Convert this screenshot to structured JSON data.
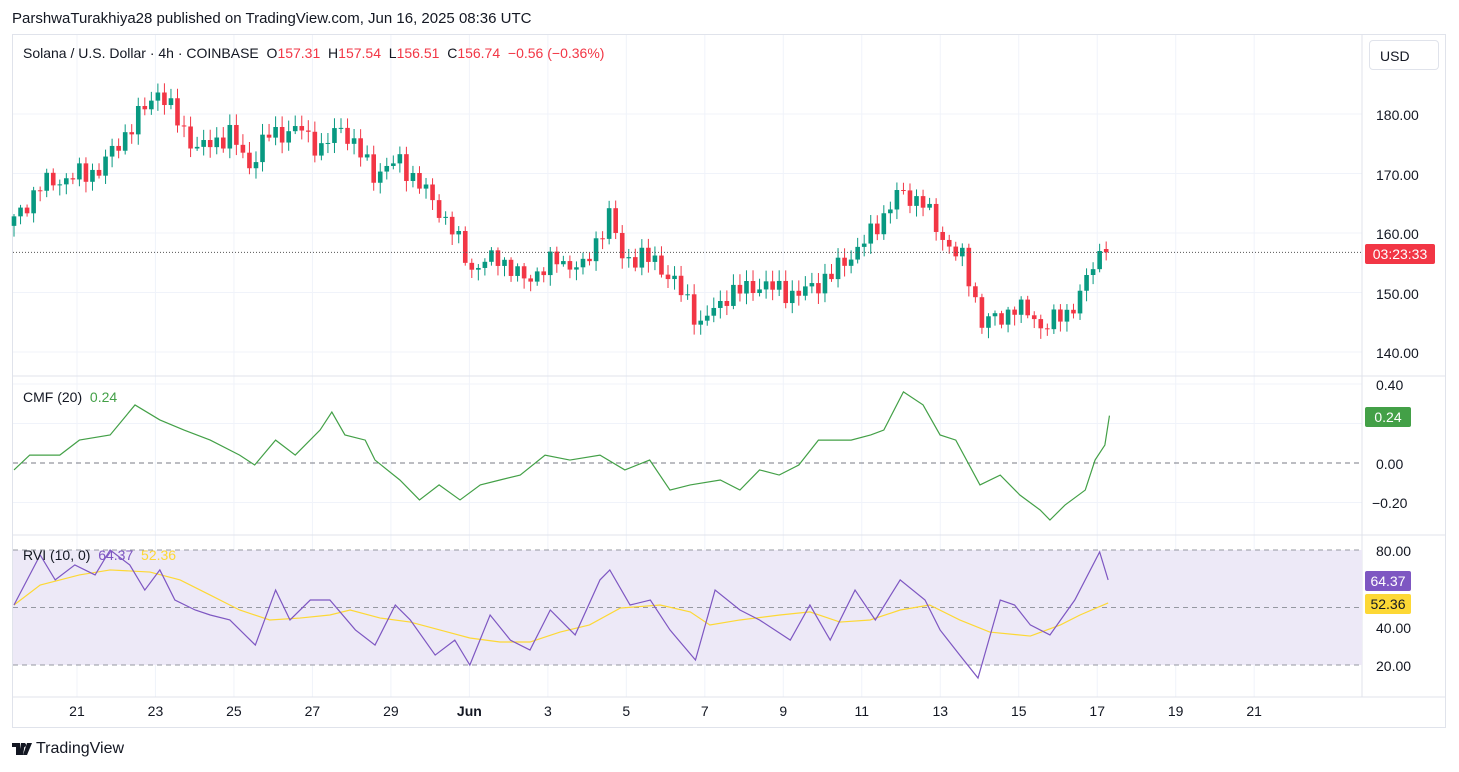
{
  "published": "ParshwaTurakhiya28 published on TradingView.com, Jun 16, 2025 08:36 UTC",
  "symbol": "Solana / U.S. Dollar · 4h · COINBASE",
  "ohlc": {
    "o_label": "O",
    "o": "157.31",
    "h_label": "H",
    "h": "157.54",
    "l_label": "L",
    "l": "156.51",
    "c_label": "C",
    "c": "156.74",
    "change": "−0.56 (−0.36%)"
  },
  "currency_button": "USD",
  "countdown": "03:23:33",
  "cmf": {
    "label": "CMF (20)",
    "value": "0.24"
  },
  "rvi": {
    "label": "RVI (10, 0)",
    "value": "64.37",
    "signal": "52.36"
  },
  "brand": "TradingView",
  "colors": {
    "up": "#089981",
    "down": "#f23645",
    "cmf": "#43a047",
    "rvi": "#7e57c2",
    "signal": "#fdd835",
    "rvi_band": "#ede9f7"
  },
  "chart_data": [
    {
      "type": "candlestick",
      "title": "Solana / U.S. Dollar · 4h · COINBASE",
      "ylim": [
        138,
        186
      ],
      "y_ticks": [
        "140.00",
        "150.00",
        "160.00",
        "170.00",
        "180.00"
      ],
      "x_ticks": [
        "21",
        "23",
        "25",
        "27",
        "29",
        "Jun",
        "3",
        "5",
        "7",
        "9",
        "11",
        "13",
        "15",
        "17",
        "19",
        "21"
      ],
      "last_price": 156.74,
      "close_anchors": [
        [
          0,
          162
        ],
        [
          4,
          168
        ],
        [
          13,
          170.6
        ],
        [
          18,
          178
        ],
        [
          22,
          184
        ],
        [
          25,
          179
        ],
        [
          28,
          174
        ],
        [
          33,
          176.6
        ],
        [
          36,
          171.4
        ],
        [
          39,
          176.6
        ],
        [
          44,
          177.3
        ],
        [
          47,
          174
        ],
        [
          50,
          178
        ],
        [
          55,
          170
        ],
        [
          59,
          172
        ],
        [
          64,
          165.5
        ],
        [
          67,
          160.5
        ],
        [
          70,
          154
        ],
        [
          74,
          156
        ],
        [
          78,
          152
        ],
        [
          83,
          155.5
        ],
        [
          87,
          154
        ],
        [
          91,
          163
        ],
        [
          93,
          156
        ],
        [
          98,
          155.5
        ],
        [
          103,
          148.7
        ],
        [
          105,
          144.5
        ],
        [
          109,
          149.6
        ],
        [
          114,
          151.3
        ],
        [
          120,
          149.6
        ],
        [
          125,
          153
        ],
        [
          128,
          156.3
        ],
        [
          131,
          159.7
        ],
        [
          135,
          166.4
        ],
        [
          139,
          165.5
        ],
        [
          141,
          160.5
        ],
        [
          145,
          155.5
        ],
        [
          148,
          145.4
        ],
        [
          151,
          145.4
        ],
        [
          153,
          148
        ],
        [
          157,
          144.5
        ],
        [
          161,
          146.2
        ],
        [
          164,
          152
        ],
        [
          166,
          156.3
        ],
        [
          167,
          156.74
        ]
      ]
    },
    {
      "type": "line",
      "title": "CMF (20)",
      "ylim": [
        -0.3,
        0.42
      ],
      "y_ticks": [
        "0.40",
        "0.20",
        "0.00",
        "−0.20"
      ],
      "points": [
        [
          0,
          -0.035
        ],
        [
          2.4,
          0.04
        ],
        [
          7,
          0.04
        ],
        [
          10,
          0.116
        ],
        [
          14.7,
          0.142
        ],
        [
          18.5,
          0.294
        ],
        [
          22.3,
          0.218
        ],
        [
          26,
          0.167
        ],
        [
          30,
          0.116
        ],
        [
          34.5,
          0.04
        ],
        [
          36.8,
          -0.01
        ],
        [
          40,
          0.116
        ],
        [
          43,
          0.04
        ],
        [
          46.8,
          0.167
        ],
        [
          48.6,
          0.258
        ],
        [
          50.6,
          0.142
        ],
        [
          53.7,
          0.116
        ],
        [
          55.2,
          0.015
        ],
        [
          59,
          -0.086
        ],
        [
          62,
          -0.187
        ],
        [
          65,
          -0.111
        ],
        [
          68.2,
          -0.187
        ],
        [
          71.3,
          -0.111
        ],
        [
          74.3,
          -0.086
        ],
        [
          77.4,
          -0.061
        ],
        [
          81.2,
          0.04
        ],
        [
          85,
          0.015
        ],
        [
          89.6,
          0.04
        ],
        [
          93.4,
          -0.035
        ],
        [
          97.2,
          0.015
        ],
        [
          100.3,
          -0.137
        ],
        [
          103.4,
          -0.111
        ],
        [
          108,
          -0.086
        ],
        [
          111,
          -0.137
        ],
        [
          114,
          -0.035
        ],
        [
          117,
          -0.061
        ],
        [
          120,
          -0.01
        ],
        [
          123,
          0.116
        ],
        [
          128,
          0.116
        ],
        [
          131,
          0.142
        ],
        [
          133,
          0.167
        ],
        [
          136,
          0.36
        ],
        [
          139,
          0.294
        ],
        [
          141.6,
          0.142
        ],
        [
          144,
          0.116
        ],
        [
          147.7,
          -0.111
        ],
        [
          150.8,
          -0.061
        ],
        [
          153.8,
          -0.162
        ],
        [
          156.9,
          -0.238
        ],
        [
          158.4,
          -0.289
        ],
        [
          160.7,
          -0.213
        ],
        [
          163.8,
          -0.137
        ],
        [
          165.3,
          0.015
        ],
        [
          166.8,
          0.091
        ],
        [
          167.5,
          0.24
        ]
      ]
    },
    {
      "type": "line",
      "title": "RVI (10, 0)",
      "ylim": [
        10,
        84
      ],
      "y_ticks": [
        "80.00",
        "60.00",
        "40.00",
        "20.00"
      ],
      "band": [
        20,
        80
      ],
      "series": [
        {
          "name": "RVI",
          "points": [
            [
              0,
              51.3
            ],
            [
              4,
              77.4
            ],
            [
              6.3,
              64.4
            ],
            [
              9.3,
              72.2
            ],
            [
              12.4,
              67
            ],
            [
              14.7,
              80
            ],
            [
              17.7,
              72.2
            ],
            [
              20,
              59.1
            ],
            [
              22.3,
              69.6
            ],
            [
              24.6,
              53.9
            ],
            [
              27.7,
              48.7
            ],
            [
              30,
              46.1
            ],
            [
              33,
              43.5
            ],
            [
              36.9,
              30.4
            ],
            [
              40,
              59.1
            ],
            [
              42.2,
              43.5
            ],
            [
              45.3,
              53.9
            ],
            [
              48.3,
              53.9
            ],
            [
              52.2,
              38.3
            ],
            [
              55.2,
              30.4
            ],
            [
              58.3,
              51.3
            ],
            [
              60.6,
              43.5
            ],
            [
              64.4,
              25.2
            ],
            [
              67.4,
              33
            ],
            [
              69.7,
              20
            ],
            [
              72.8,
              46.1
            ],
            [
              75.9,
              33
            ],
            [
              78.9,
              27.8
            ],
            [
              82,
              48.7
            ],
            [
              85.8,
              35.7
            ],
            [
              89.6,
              64.4
            ],
            [
              91.1,
              69.6
            ],
            [
              94.2,
              51.3
            ],
            [
              97.3,
              53.9
            ],
            [
              100.3,
              38.3
            ],
            [
              104.2,
              22.6
            ],
            [
              107.2,
              59.1
            ],
            [
              111,
              48.7
            ],
            [
              114,
              43.5
            ],
            [
              118.7,
              33
            ],
            [
              121.7,
              51.3
            ],
            [
              124.8,
              33
            ],
            [
              128.6,
              59.1
            ],
            [
              131.7,
              43.5
            ],
            [
              135.5,
              64.4
            ],
            [
              139.3,
              53.9
            ],
            [
              141.6,
              38.3
            ],
            [
              144.6,
              25.2
            ],
            [
              147.4,
              13.2
            ],
            [
              150.8,
              53.9
            ],
            [
              153,
              51.3
            ],
            [
              155.4,
              40.9
            ],
            [
              158.4,
              35.7
            ],
            [
              162.2,
              53.9
            ],
            [
              166,
              79
            ],
            [
              167.3,
              64.37
            ]
          ]
        },
        {
          "name": "Signal",
          "points": [
            [
              0,
              51.3
            ],
            [
              4,
              61.7
            ],
            [
              10,
              67
            ],
            [
              14.7,
              69.6
            ],
            [
              20.8,
              68.5
            ],
            [
              25.4,
              64.4
            ],
            [
              30,
              56.5
            ],
            [
              34.5,
              48.7
            ],
            [
              39.1,
              43.5
            ],
            [
              43.7,
              44.5
            ],
            [
              48.3,
              46.1
            ],
            [
              51.4,
              48.7
            ],
            [
              56,
              44.5
            ],
            [
              60.6,
              42.4
            ],
            [
              65.1,
              38.3
            ],
            [
              69.7,
              34.1
            ],
            [
              74.3,
              32
            ],
            [
              78.9,
              32
            ],
            [
              83.5,
              37.2
            ],
            [
              88,
              40.9
            ],
            [
              92.7,
              49.7
            ],
            [
              98.8,
              51.3
            ],
            [
              103.4,
              47.7
            ],
            [
              106.4,
              40.9
            ],
            [
              111,
              43.5
            ],
            [
              117.1,
              46.1
            ],
            [
              121.7,
              47.7
            ],
            [
              126.3,
              42.4
            ],
            [
              130.9,
              43.5
            ],
            [
              135.5,
              48.7
            ],
            [
              140,
              51.3
            ],
            [
              144.6,
              43.5
            ],
            [
              149.2,
              37.2
            ],
            [
              155.4,
              35.1
            ],
            [
              160,
              40.9
            ],
            [
              163,
              46.1
            ],
            [
              167.3,
              52.36
            ]
          ]
        }
      ]
    }
  ]
}
